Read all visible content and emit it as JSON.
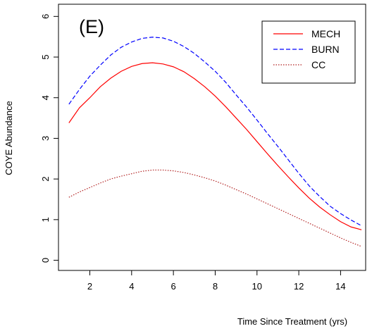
{
  "chart_data": {
    "type": "line",
    "title": "",
    "panel_label": "(E)",
    "xlabel": "Time Since Treatment (yrs)",
    "ylabel": "COYE Abundance",
    "xlim": [
      0.5,
      15.2
    ],
    "ylim": [
      -0.25,
      6.3
    ],
    "x_ticks": [
      2,
      4,
      6,
      8,
      10,
      12,
      14
    ],
    "y_ticks": [
      0,
      1,
      2,
      3,
      4,
      5,
      6
    ],
    "grid": false,
    "legend_position": "top-right",
    "x": [
      1,
      1.5,
      2,
      2.5,
      3,
      3.5,
      4,
      4.5,
      5,
      5.5,
      6,
      6.5,
      7,
      7.5,
      8,
      8.5,
      9,
      9.5,
      10,
      10.5,
      11,
      11.5,
      12,
      12.5,
      13,
      13.5,
      14,
      14.5,
      15
    ],
    "series": [
      {
        "name": "MECH",
        "color": "#ff0000",
        "dash": "solid",
        "values": [
          3.38,
          3.75,
          4.0,
          4.27,
          4.48,
          4.65,
          4.77,
          4.84,
          4.86,
          4.83,
          4.76,
          4.64,
          4.47,
          4.27,
          4.04,
          3.78,
          3.5,
          3.22,
          2.92,
          2.62,
          2.33,
          2.05,
          1.78,
          1.53,
          1.31,
          1.12,
          0.95,
          0.82,
          0.75
        ]
      },
      {
        "name": "BURN",
        "color": "#0000ff",
        "dash": "dashed",
        "values": [
          3.84,
          4.2,
          4.53,
          4.8,
          5.05,
          5.24,
          5.37,
          5.46,
          5.49,
          5.47,
          5.39,
          5.26,
          5.09,
          4.88,
          4.65,
          4.38,
          4.07,
          3.77,
          3.45,
          3.12,
          2.8,
          2.47,
          2.14,
          1.83,
          1.57,
          1.33,
          1.15,
          0.99,
          0.85
        ]
      },
      {
        "name": "CC",
        "color": "#b22222",
        "dash": "dotted",
        "values": [
          1.55,
          1.68,
          1.79,
          1.9,
          2.0,
          2.07,
          2.13,
          2.19,
          2.22,
          2.22,
          2.2,
          2.16,
          2.1,
          2.03,
          1.95,
          1.85,
          1.74,
          1.63,
          1.51,
          1.39,
          1.27,
          1.15,
          1.03,
          0.91,
          0.79,
          0.67,
          0.55,
          0.44,
          0.34
        ]
      }
    ]
  }
}
